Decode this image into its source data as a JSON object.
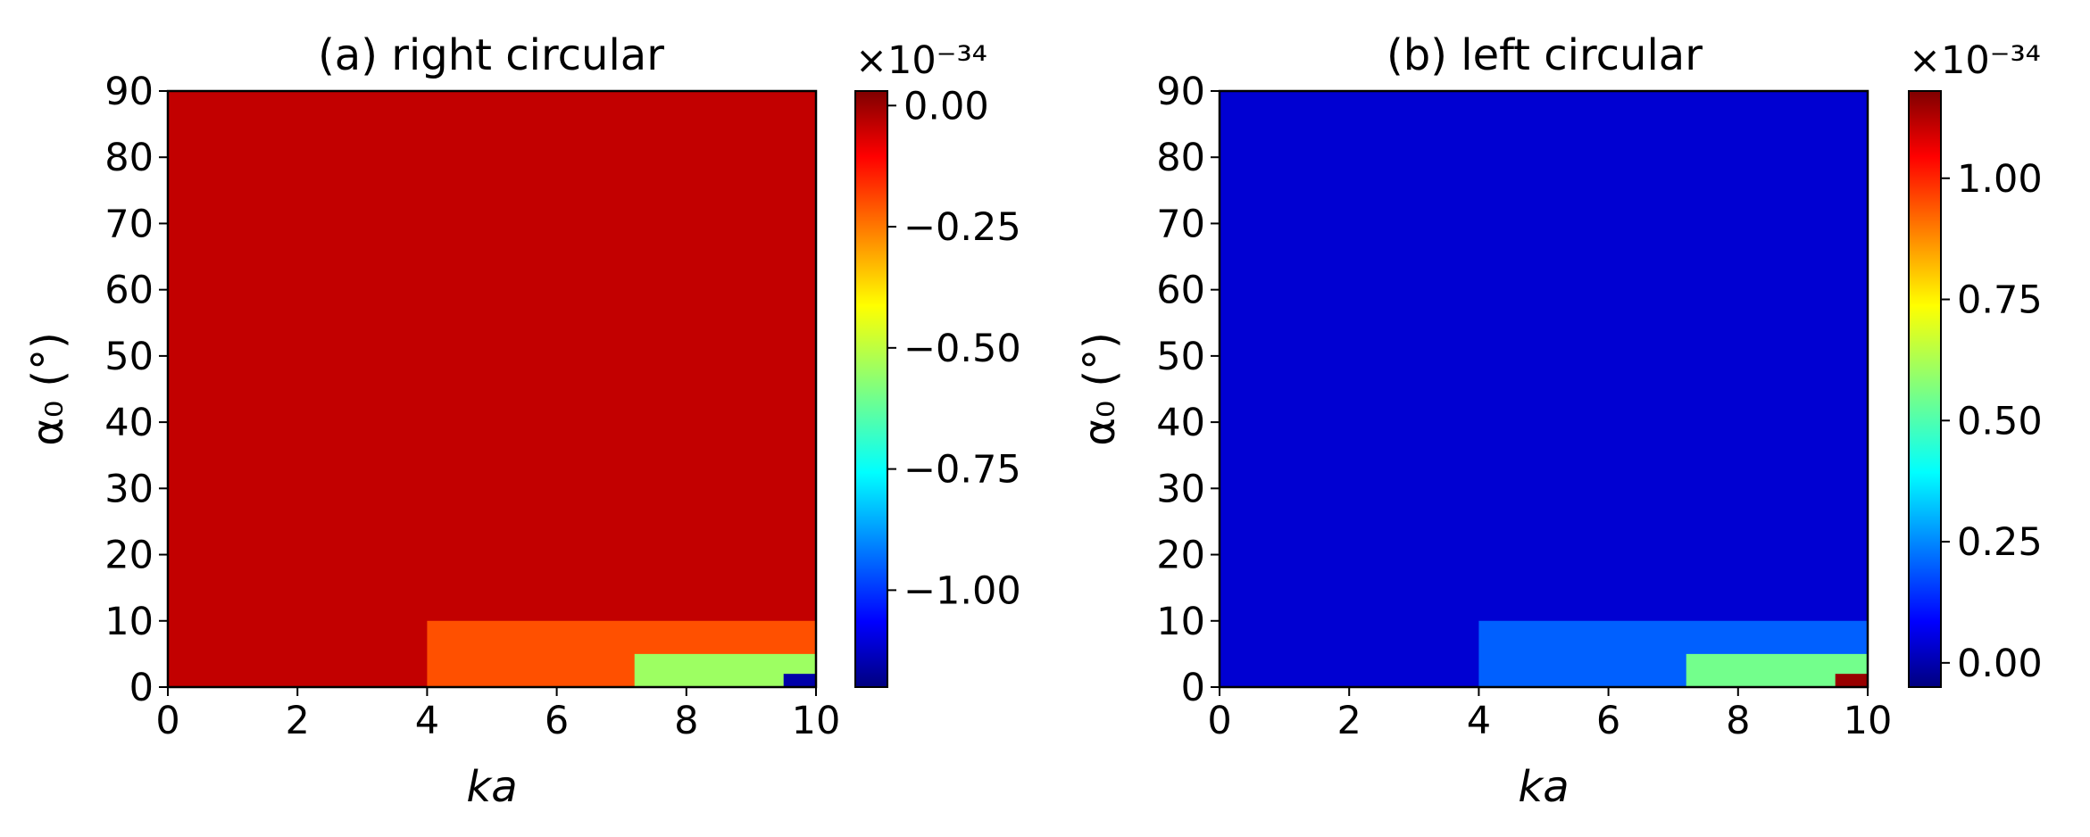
{
  "chart_data": [
    {
      "type": "heatmap",
      "title": "(a) right circular",
      "xlabel": "ka",
      "ylabel": "α₀ (°)",
      "xlim": [
        0,
        10
      ],
      "ylim": [
        0,
        90
      ],
      "xticks": [
        0,
        2,
        4,
        6,
        8,
        10
      ],
      "yticks": [
        0,
        10,
        20,
        30,
        40,
        50,
        60,
        70,
        80,
        90
      ],
      "colorbar": {
        "multiplier": "×10⁻³⁴",
        "range": [
          -1.2,
          0.03
        ],
        "ticks": [
          0.0,
          -0.25,
          -0.5,
          -0.75,
          -1.0
        ],
        "tick_labels": [
          "0.00",
          "−0.25",
          "−0.50",
          "−0.75",
          "−1.00"
        ],
        "colormap": "jet"
      },
      "background_value": -0.05,
      "features": [
        {
          "ka_range": [
            4,
            10
          ],
          "alpha_range": [
            0,
            10
          ],
          "value": -0.22
        },
        {
          "ka_range": [
            7.2,
            10
          ],
          "alpha_range": [
            0,
            5
          ],
          "value": -0.55
        },
        {
          "ka_range": [
            9.5,
            10
          ],
          "alpha_range": [
            0,
            2
          ],
          "value": -1.15
        }
      ]
    },
    {
      "type": "heatmap",
      "title": "(b) left circular",
      "xlabel": "ka",
      "ylabel": "α₀ (°)",
      "xlim": [
        0,
        10
      ],
      "ylim": [
        0,
        90
      ],
      "xticks": [
        0,
        2,
        4,
        6,
        8,
        10
      ],
      "yticks": [
        0,
        10,
        20,
        30,
        40,
        50,
        60,
        70,
        80,
        90
      ],
      "colorbar": {
        "multiplier": "×10⁻³⁴",
        "range": [
          -0.05,
          1.18
        ],
        "ticks": [
          0.0,
          0.25,
          0.5,
          0.75,
          1.0
        ],
        "tick_labels": [
          "0.00",
          "0.25",
          "0.50",
          "0.75",
          "1.00"
        ],
        "colormap": "jet"
      },
      "background_value": 0.05,
      "features": [
        {
          "ka_range": [
            4,
            10
          ],
          "alpha_range": [
            0,
            10
          ],
          "value": 0.22
        },
        {
          "ka_range": [
            7.2,
            10
          ],
          "alpha_range": [
            0,
            5
          ],
          "value": 0.55
        },
        {
          "ka_range": [
            9.5,
            10
          ],
          "alpha_range": [
            0,
            2
          ],
          "value": 1.15
        }
      ]
    }
  ]
}
